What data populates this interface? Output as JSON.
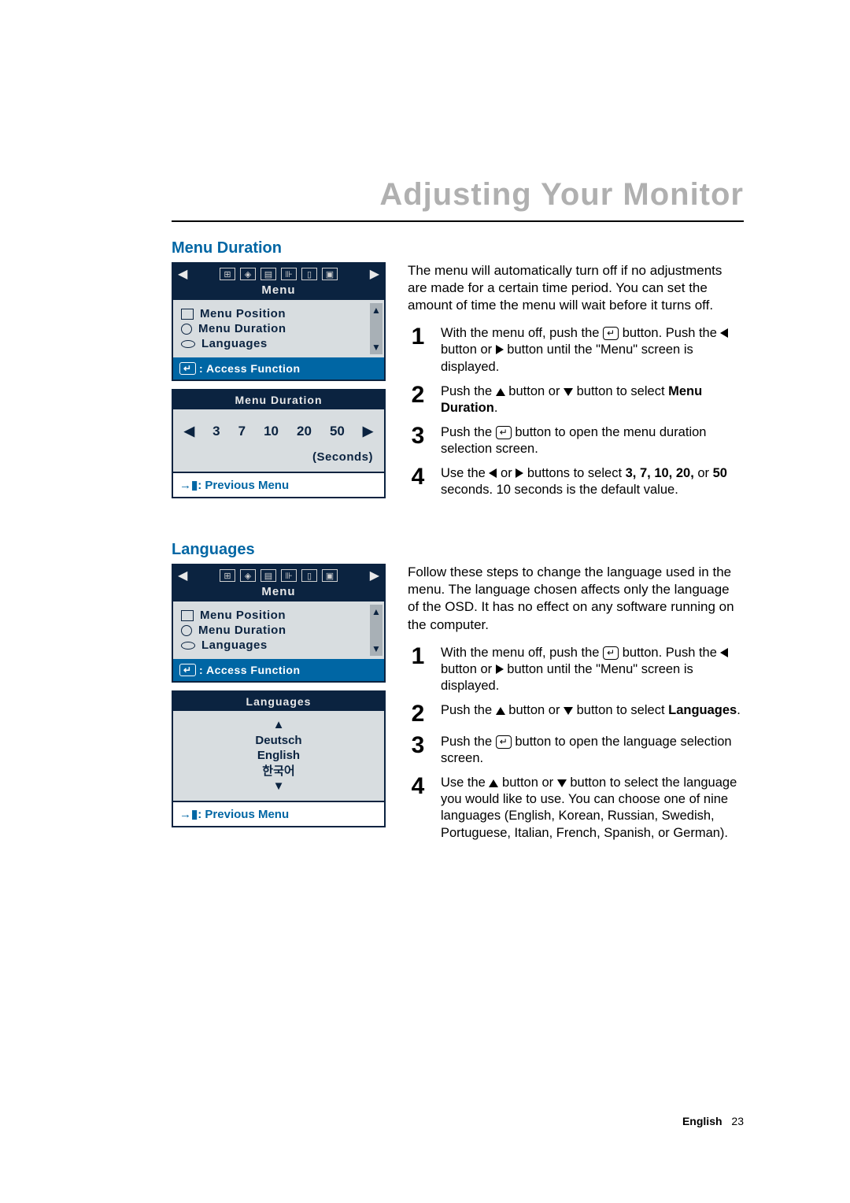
{
  "page": {
    "title": "Adjusting Your Monitor",
    "footer_label": "English",
    "footer_page": "23",
    "colors": {
      "title_gray": "#b0b0b0",
      "heading_blue": "#0066a4",
      "osd_dark": "#0b2340",
      "osd_body": "#d8dde0",
      "osd_accent": "#0066a4"
    }
  },
  "section1": {
    "heading": "Menu Duration",
    "osd_main": {
      "topbar_title": "Menu",
      "items": [
        "Menu Position",
        "Menu Duration",
        "Languages"
      ],
      "foot_prefix": ": Access Function"
    },
    "osd_sub": {
      "title": "Menu Duration",
      "values": [
        "3",
        "7",
        "10",
        "20",
        "50"
      ],
      "unit": "(Seconds)",
      "foot": ": Previous Menu"
    },
    "intro": "The menu will automatically turn off if no adjustments are made for a certain time period. You can set the amount of time the menu will wait before it turns off.",
    "steps": {
      "s1a": "With the menu off, push the ",
      "s1b": " button. Push the ",
      "s1c": " button or ",
      "s1d": " button until the \"Menu\" screen is displayed.",
      "s2a": "Push the ",
      "s2b": " button or ",
      "s2c": " button to select ",
      "s2_bold": "Menu Duration",
      "s2d": ".",
      "s3a": "Push the ",
      "s3b": " button to open the menu duration selection screen.",
      "s4a": "Use the ",
      "s4b": " or ",
      "s4c": " buttons to select ",
      "s4_bold1": "3, 7, 10, 20,",
      "s4d": " or ",
      "s4_bold2": "50",
      "s4e": " seconds. 10 seconds is the default value."
    }
  },
  "section2": {
    "heading": "Languages",
    "osd_main": {
      "topbar_title": "Menu",
      "items": [
        "Menu Position",
        "Menu Duration",
        "Languages"
      ],
      "foot_prefix": ": Access Function"
    },
    "osd_sub": {
      "title": "Languages",
      "options": [
        "Deutsch",
        "English",
        "한국어"
      ],
      "foot": ": Previous Menu"
    },
    "intro": "Follow these steps to change the language used in the menu. The language chosen affects only the language of the OSD. It has no effect on any software running on the computer.",
    "steps": {
      "s1a": "With the menu off, push the ",
      "s1b": " button. Push the ",
      "s1c": " button or ",
      "s1d": " button until the \"Menu\" screen is displayed.",
      "s2a": "Push the ",
      "s2b": " button or ",
      "s2c": " button to select ",
      "s2_bold": "Languages",
      "s2d": ".",
      "s3a": "Push the ",
      "s3b": " button to open the language selection screen.",
      "s4a": "Use the ",
      "s4b": " button or ",
      "s4c": " button to select the language you would like to use. You can choose one of nine languages (English, Korean, Russian, Swedish, Portuguese, Italian, French, Spanish, or German)."
    }
  }
}
